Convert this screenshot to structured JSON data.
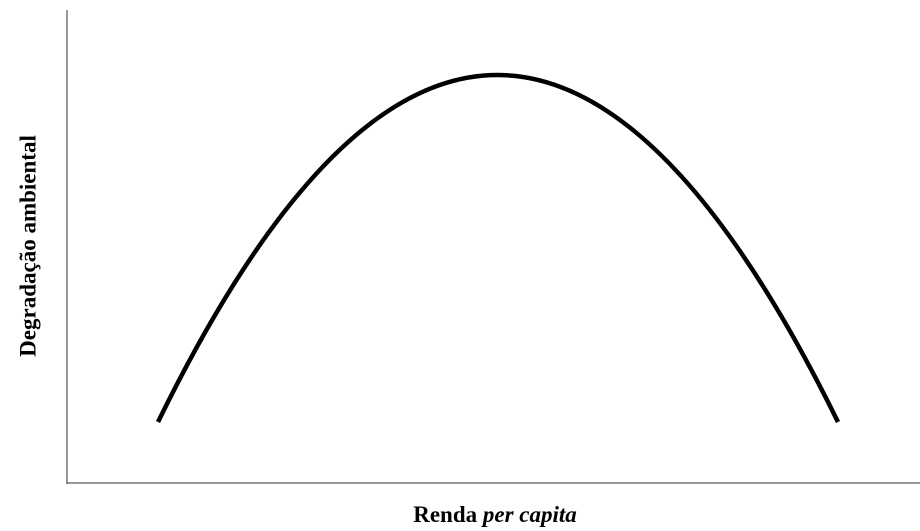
{
  "y_axis_label": "Degradação ambiental",
  "x_axis_label": {
    "main": "Renda",
    "italic": "per capita"
  }
}
